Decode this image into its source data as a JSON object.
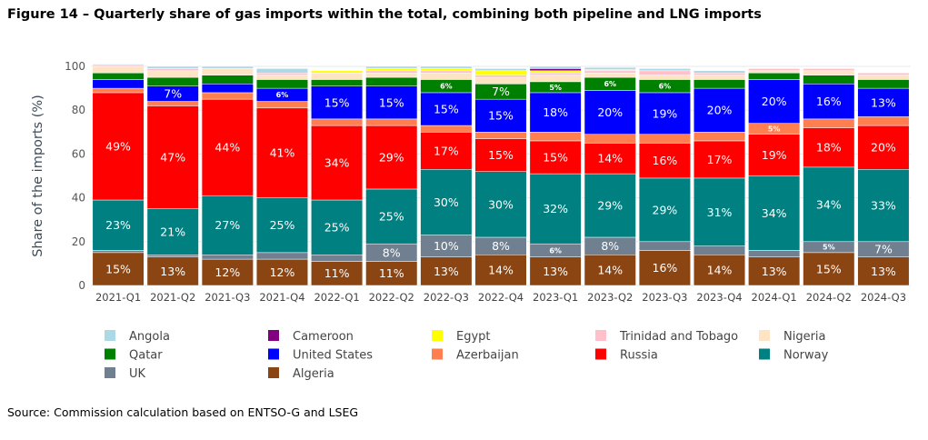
{
  "title": "Figure 14 – Quarterly share of gas imports within the total, combining both pipeline and LNG imports",
  "source": "Source: Commission calculation based on ENTSO-G and LSEG",
  "chart_data": {
    "type": "bar",
    "stacked": true,
    "ylabel": "Share of the imports (%)",
    "xlabel": "",
    "ylim": [
      0,
      100
    ],
    "yticks": [
      0,
      20,
      40,
      60,
      80,
      100
    ],
    "grid": true,
    "legend_placement": "bottom",
    "categories": [
      "2021-Q1",
      "2021-Q2",
      "2021-Q3",
      "2021-Q4",
      "2022-Q1",
      "2022-Q2",
      "2022-Q3",
      "2022-Q4",
      "2023-Q1",
      "2023-Q2",
      "2023-Q3",
      "2023-Q4",
      "2024-Q1",
      "2024-Q2",
      "2024-Q3"
    ],
    "series": [
      {
        "name": "Algeria",
        "color": "#8b4513",
        "values": [
          15,
          13,
          12,
          12,
          11,
          11,
          13,
          14,
          13,
          14,
          16,
          14,
          13,
          15,
          13
        ]
      },
      {
        "name": "UK",
        "color": "#708090",
        "values": [
          1,
          1,
          2,
          3,
          3,
          8,
          10,
          8,
          6,
          8,
          4,
          4,
          3,
          5,
          7
        ]
      },
      {
        "name": "Norway",
        "color": "#008080",
        "values": [
          23,
          21,
          27,
          25,
          25,
          25,
          30,
          30,
          32,
          29,
          29,
          31,
          34,
          34,
          33
        ]
      },
      {
        "name": "Russia",
        "color": "#ff0000",
        "values": [
          49,
          47,
          44,
          41,
          34,
          29,
          17,
          15,
          15,
          14,
          16,
          17,
          19,
          18,
          20
        ]
      },
      {
        "name": "Azerbaijan",
        "color": "#ff7f50",
        "values": [
          2,
          2,
          3,
          3,
          3,
          3,
          3,
          3,
          4,
          4,
          4,
          4,
          5,
          4,
          4
        ]
      },
      {
        "name": "United States",
        "color": "#0000ff",
        "values": [
          4,
          7,
          4,
          6,
          15,
          15,
          15,
          15,
          18,
          20,
          19,
          20,
          20,
          16,
          13
        ]
      },
      {
        "name": "Qatar",
        "color": "#008000",
        "values": [
          3,
          4,
          4,
          4,
          3,
          4,
          6,
          7,
          5,
          6,
          6,
          4,
          3,
          4,
          4
        ]
      },
      {
        "name": "Nigeria",
        "color": "#ffe4c4",
        "values": [
          3,
          3,
          3,
          2,
          3,
          2,
          3,
          3,
          3,
          2,
          2,
          2,
          1,
          2,
          2
        ]
      },
      {
        "name": "Trinidad and Tobago",
        "color": "#ffc0cb",
        "values": [
          0.5,
          1,
          0,
          1,
          0,
          1,
          1,
          1,
          1,
          1,
          2,
          1,
          1,
          1,
          1
        ]
      },
      {
        "name": "Egypt",
        "color": "#ffff00",
        "values": [
          0,
          0,
          0,
          0,
          1,
          1,
          1,
          2,
          1,
          0.5,
          0,
          0,
          0,
          0,
          0
        ]
      },
      {
        "name": "Cameroon",
        "color": "#800080",
        "values": [
          0,
          0,
          0,
          0,
          0,
          0,
          0,
          0,
          1,
          0,
          0,
          0,
          0,
          0,
          0
        ]
      },
      {
        "name": "Angola",
        "color": "#add8e6",
        "values": [
          0.5,
          1,
          1,
          2,
          0,
          1,
          1,
          1,
          1,
          1,
          1,
          1,
          0,
          0,
          0
        ]
      }
    ],
    "legend_order": [
      "Angola",
      "Cameroon",
      "Egypt",
      "Trinidad and Tobago",
      "Nigeria",
      "Qatar",
      "United States",
      "Azerbaijan",
      "Russia",
      "Norway",
      "UK",
      "Algeria"
    ]
  }
}
